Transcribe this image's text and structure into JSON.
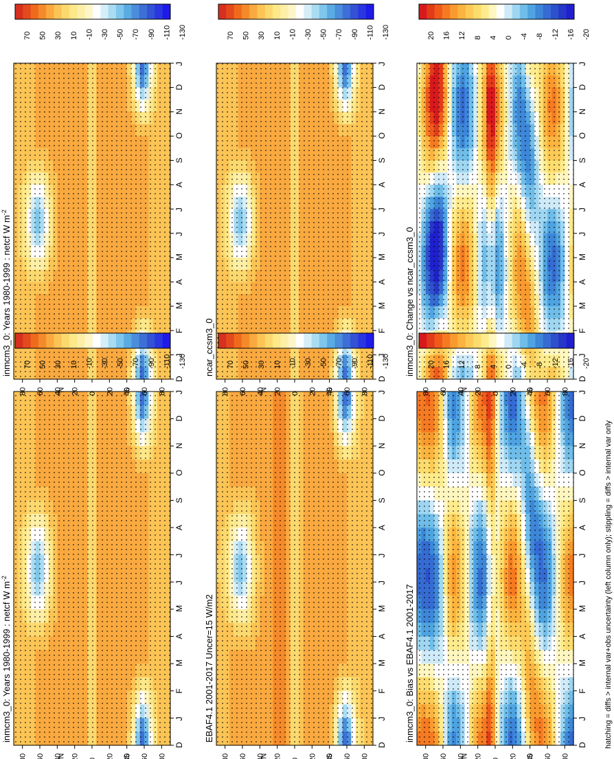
{
  "figure": {
    "footer_note": "hatching = diffs > internal var+obs uncertainty (left column only); stippling = diffs > internal var only"
  },
  "chart_data": [
    {
      "type": "heatmap",
      "id": "model-left",
      "title": "inmcm3_0: Years 1980-1999 : netcf W m",
      "title_superscript": "-2",
      "x_axis": "latitude",
      "y_axis": "month",
      "ticks": [
        "D",
        "J",
        "F",
        "M",
        "A",
        "M",
        "J",
        "J",
        "A",
        "S",
        "O",
        "N",
        "D",
        "J"
      ],
      "lat_ticks": [
        "80",
        "60",
        "40",
        "20",
        "0",
        "20",
        "40",
        "60",
        "80"
      ],
      "lat_ylim": [
        -90,
        90
      ],
      "hem_labels": [
        "°N",
        "°S"
      ],
      "scale": "abs",
      "colorbar_ticks": [
        "70",
        "50",
        "30",
        "10",
        "-10",
        "-30",
        "-50",
        "-70",
        "-90",
        "-110",
        "-130"
      ]
    },
    {
      "type": "heatmap",
      "id": "obs",
      "title": "EBAF4.1 2001-2017 Uncer=15 W/m2",
      "title_superscript": "",
      "x_axis": "latitude",
      "y_axis": "month",
      "ticks": [
        "D",
        "J",
        "F",
        "M",
        "A",
        "M",
        "J",
        "J",
        "A",
        "S",
        "O",
        "N",
        "D",
        "J"
      ],
      "lat_ticks": [
        "80",
        "60",
        "40",
        "20",
        "0",
        "20",
        "40",
        "60",
        "80"
      ],
      "lat_ylim": [
        -90,
        90
      ],
      "hem_labels": [
        "°N",
        "°S"
      ],
      "scale": "abs",
      "colorbar_ticks": [
        "70",
        "50",
        "30",
        "10",
        "-10",
        "-30",
        "-50",
        "-70",
        "-90",
        "-110",
        "-130"
      ]
    },
    {
      "type": "heatmap",
      "id": "bias",
      "title": "inmcm3_0: Bias vs EBAF4.1 2001-2017",
      "title_superscript": "",
      "x_axis": "latitude",
      "y_axis": "month",
      "ticks": [
        "D",
        "J",
        "F",
        "M",
        "A",
        "M",
        "J",
        "J",
        "A",
        "S",
        "O",
        "N",
        "D",
        "J"
      ],
      "lat_ticks": [
        "80",
        "60",
        "40",
        "20",
        "0",
        "20",
        "40",
        "60",
        "80"
      ],
      "lat_ylim": [
        -90,
        90
      ],
      "hem_labels": [
        "°N",
        "°S"
      ],
      "scale": "diff",
      "colorbar_ticks": [
        "20",
        "16",
        "12",
        "8",
        "4",
        "0",
        "-4",
        "-8",
        "-12",
        "-16",
        "-20"
      ]
    },
    {
      "type": "heatmap",
      "id": "model-right",
      "title": "inmcm3_0: Years 1980-1999 : netcf W m",
      "title_superscript": "-2",
      "x_axis": "latitude",
      "y_axis": "month",
      "ticks": [
        "D",
        "J",
        "F",
        "M",
        "A",
        "M",
        "J",
        "J",
        "A",
        "S",
        "O",
        "N",
        "D",
        "J"
      ],
      "lat_ticks": [
        "80",
        "60",
        "40",
        "20",
        "0",
        "20",
        "40",
        "60",
        "80"
      ],
      "lat_ylim": [
        -90,
        90
      ],
      "hem_labels": [
        "°N",
        "°S"
      ],
      "scale": "abs",
      "colorbar_ticks": [
        "70",
        "50",
        "30",
        "10",
        "-10",
        "-30",
        "-50",
        "-70",
        "-90",
        "-110",
        "-130"
      ]
    },
    {
      "type": "heatmap",
      "id": "ref-model",
      "title": "ncar_ccsm3_0",
      "title_superscript": "",
      "x_axis": "latitude",
      "y_axis": "month",
      "ticks": [
        "D",
        "J",
        "F",
        "M",
        "A",
        "M",
        "J",
        "J",
        "A",
        "S",
        "O",
        "N",
        "D",
        "J"
      ],
      "lat_ticks": [
        "80",
        "60",
        "40",
        "20",
        "0",
        "20",
        "40",
        "60",
        "80"
      ],
      "lat_ylim": [
        -90,
        90
      ],
      "hem_labels": [
        "°N",
        "°S"
      ],
      "scale": "abs",
      "colorbar_ticks": [
        "70",
        "50",
        "30",
        "10",
        "-10",
        "-30",
        "-50",
        "-70",
        "-90",
        "-110",
        "-130"
      ]
    },
    {
      "type": "heatmap",
      "id": "change",
      "title": "inmcm3_0: Change vs ncar_ccsm3_0",
      "title_superscript": "",
      "x_axis": "latitude",
      "y_axis": "month",
      "ticks": [
        "D",
        "J",
        "F",
        "M",
        "A",
        "M",
        "J",
        "J",
        "A",
        "S",
        "O",
        "N",
        "D",
        "J"
      ],
      "lat_ticks": [
        "80",
        "60",
        "40",
        "20",
        "0",
        "20",
        "40",
        "60",
        "80"
      ],
      "lat_ylim": [
        -90,
        90
      ],
      "hem_labels": [
        "°N",
        "°S"
      ],
      "scale": "diff",
      "colorbar_ticks": [
        "20",
        "16",
        "12",
        "8",
        "4",
        "0",
        "-4",
        "-8",
        "-12",
        "-16",
        "-20"
      ]
    }
  ],
  "palettes": {
    "abs": [
      "#d7301f",
      "#e34a1c",
      "#f06a1c",
      "#f58a2a",
      "#f9a93f",
      "#fbc455",
      "#fcd96e",
      "#fde88a",
      "#feefa8",
      "#fff6c8",
      "#ffffff",
      "#d6eef8",
      "#a9dcf2",
      "#7fc6ec",
      "#5aabe4",
      "#4a8ddb",
      "#3d6fd6",
      "#3352d6",
      "#2a36e0",
      "#1f1ae8"
    ],
    "diff": [
      "#d7191c",
      "#e33a1a",
      "#ef5a1b",
      "#f57a22",
      "#f99a2e",
      "#fbb43f",
      "#fcca55",
      "#fddc6e",
      "#feeb8c",
      "#fff6c0",
      "#ffffff",
      "#cfeaf8",
      "#9fd6f2",
      "#6fbde9",
      "#4ea3e0",
      "#3d86d8",
      "#356bd2",
      "#2d50cc",
      "#2636c8",
      "#1f1fcf"
    ]
  }
}
